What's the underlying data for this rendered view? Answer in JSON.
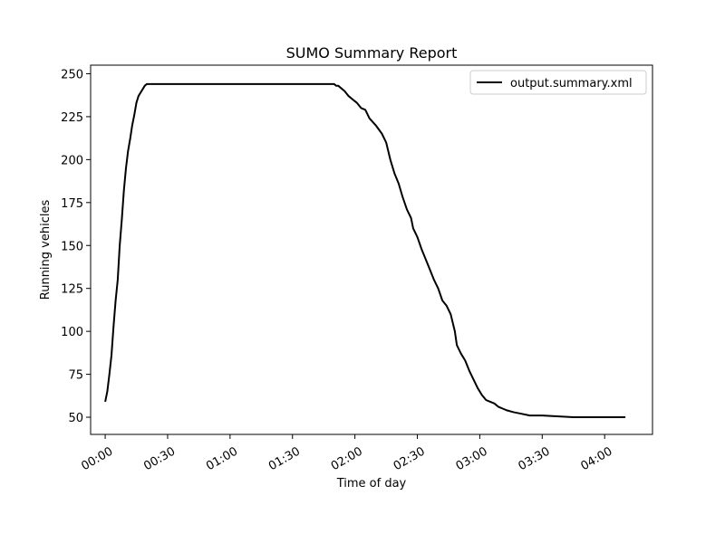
{
  "chart_data": {
    "type": "line",
    "title": "SUMO Summary Report",
    "xlabel": "Time of day",
    "ylabel": "Running vehicles",
    "x_unit": "minutes",
    "xlim": [
      -7,
      263
    ],
    "ylim": [
      40,
      255
    ],
    "xticks": [
      0,
      30,
      60,
      90,
      120,
      150,
      180,
      210,
      240
    ],
    "xtick_labels": [
      "00:00",
      "00:30",
      "01:00",
      "01:30",
      "02:00",
      "02:30",
      "03:00",
      "03:30",
      "04:00"
    ],
    "yticks": [
      50,
      75,
      100,
      125,
      150,
      175,
      200,
      225,
      250
    ],
    "ytick_labels": [
      "50",
      "75",
      "100",
      "125",
      "150",
      "175",
      "200",
      "225",
      "250"
    ],
    "grid": false,
    "legend_position": "top-right",
    "series": [
      {
        "name": "output.summary.xml",
        "color": "#000000",
        "points": [
          [
            0,
            59
          ],
          [
            1,
            65
          ],
          [
            2,
            75
          ],
          [
            3,
            86
          ],
          [
            4,
            103
          ],
          [
            5,
            118
          ],
          [
            6,
            130
          ],
          [
            7,
            150
          ],
          [
            8,
            165
          ],
          [
            9,
            182
          ],
          [
            10,
            195
          ],
          [
            11,
            205
          ],
          [
            12,
            212
          ],
          [
            13,
            220
          ],
          [
            14,
            226
          ],
          [
            15,
            233
          ],
          [
            16,
            237
          ],
          [
            17,
            239
          ],
          [
            18,
            241
          ],
          [
            19,
            243
          ],
          [
            20,
            244
          ],
          [
            30,
            244
          ],
          [
            60,
            244
          ],
          [
            90,
            244
          ],
          [
            110,
            244
          ],
          [
            111,
            243
          ],
          [
            112,
            243
          ],
          [
            115,
            240
          ],
          [
            117,
            237
          ],
          [
            119,
            235
          ],
          [
            121,
            233
          ],
          [
            123,
            230
          ],
          [
            125,
            229
          ],
          [
            127,
            224
          ],
          [
            130,
            220
          ],
          [
            133,
            215
          ],
          [
            135,
            210
          ],
          [
            137,
            200
          ],
          [
            139,
            192
          ],
          [
            141,
            186
          ],
          [
            143,
            178
          ],
          [
            145,
            171
          ],
          [
            147,
            166
          ],
          [
            148,
            160
          ],
          [
            150,
            155
          ],
          [
            152,
            148
          ],
          [
            154,
            142
          ],
          [
            156,
            136
          ],
          [
            158,
            130
          ],
          [
            160,
            125
          ],
          [
            162,
            118
          ],
          [
            164,
            115
          ],
          [
            166,
            110
          ],
          [
            168,
            100
          ],
          [
            169,
            92
          ],
          [
            171,
            87
          ],
          [
            173,
            83
          ],
          [
            175,
            77
          ],
          [
            177,
            72
          ],
          [
            179,
            67
          ],
          [
            181,
            63
          ],
          [
            183,
            60
          ],
          [
            185,
            59
          ],
          [
            187,
            58
          ],
          [
            189,
            56
          ],
          [
            191,
            55
          ],
          [
            193,
            54
          ],
          [
            196,
            53
          ],
          [
            200,
            52
          ],
          [
            204,
            51
          ],
          [
            210,
            51
          ],
          [
            225,
            50
          ],
          [
            235,
            50
          ],
          [
            250,
            50
          ]
        ]
      }
    ]
  }
}
